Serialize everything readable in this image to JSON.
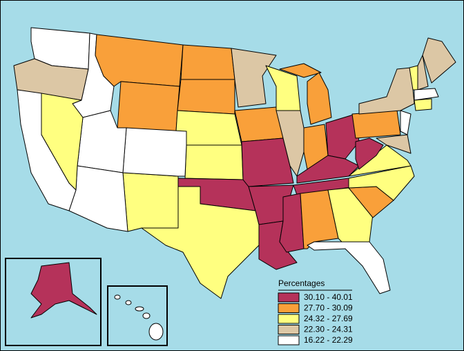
{
  "legend": {
    "title": "Percentages",
    "items": [
      {
        "label": "30.10 - 40.01",
        "color": "#b5325a"
      },
      {
        "label": "27.70 - 30.09",
        "color": "#f9a03a"
      },
      {
        "label": "24.32 - 27.69",
        "color": "#ffff80"
      },
      {
        "label": "22.30 - 24.31",
        "color": "#dcc7a5"
      },
      {
        "label": "16.22 - 22.29",
        "color": "#ffffff"
      }
    ]
  },
  "background": "#a6dce8"
}
